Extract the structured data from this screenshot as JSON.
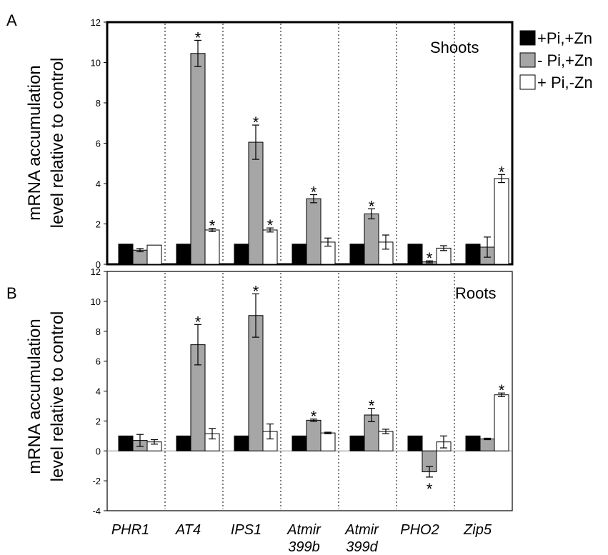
{
  "chart_data": [
    {
      "type": "bar",
      "panel": "A",
      "annotation": "Shoots",
      "ylabel": "mRNA accumulation level relative to control",
      "ylim": [
        0,
        12
      ],
      "yticks": [
        0,
        2,
        4,
        6,
        8,
        10,
        12
      ],
      "categories": [
        "PHR1",
        "AT4",
        "IPS1",
        "Atmir 399b",
        "Atmir 399d",
        "PHO2",
        "Zip5"
      ],
      "series": [
        {
          "name": "+Pi,+Zn",
          "color": "#000000",
          "values": [
            1,
            1,
            1,
            1,
            1,
            1,
            1
          ],
          "errors": [
            0,
            0,
            0,
            0,
            0,
            0,
            0
          ],
          "significant": [
            false,
            false,
            false,
            false,
            false,
            false,
            false
          ]
        },
        {
          "name": "- Pi,+Zn",
          "color": "#a6a6a6",
          "values": [
            0.7,
            10.45,
            6.05,
            3.25,
            2.5,
            0.12,
            0.85
          ],
          "errors": [
            0.08,
            0.65,
            0.85,
            0.2,
            0.25,
            0.05,
            0.5
          ],
          "significant": [
            false,
            true,
            true,
            true,
            true,
            true,
            false
          ]
        },
        {
          "name": "+ Pi,-Zn",
          "color": "#ffffff",
          "values": [
            0.95,
            1.7,
            1.7,
            1.1,
            1.1,
            0.8,
            4.25
          ],
          "errors": [
            0,
            0.08,
            0.1,
            0.2,
            0.35,
            0.12,
            0.2
          ],
          "significant": [
            false,
            true,
            true,
            false,
            false,
            false,
            true
          ]
        }
      ]
    },
    {
      "type": "bar",
      "panel": "B",
      "annotation": "Roots",
      "ylabel": "mRNA accumulation level relative to control",
      "ylim": [
        -4,
        12
      ],
      "yticks": [
        -4,
        -2,
        0,
        2,
        4,
        6,
        8,
        10,
        12
      ],
      "categories": [
        "PHR1",
        "AT4",
        "IPS1",
        "Atmir 399b",
        "Atmir 399d",
        "PHO2",
        "Zip5"
      ],
      "series": [
        {
          "name": "+Pi,+Zn",
          "color": "#000000",
          "values": [
            1,
            1,
            1,
            1,
            1,
            1,
            1
          ],
          "errors": [
            0,
            0,
            0,
            0,
            0,
            0,
            0
          ],
          "significant": [
            false,
            false,
            false,
            false,
            false,
            false,
            false
          ]
        },
        {
          "name": "- Pi,+Zn",
          "color": "#a6a6a6",
          "values": [
            0.7,
            7.1,
            9.05,
            2.05,
            2.4,
            -1.4,
            0.8
          ],
          "errors": [
            0.4,
            1.35,
            1.45,
            0.08,
            0.45,
            0.35,
            0.05
          ],
          "significant": [
            false,
            true,
            true,
            true,
            true,
            true,
            false
          ]
        },
        {
          "name": "+ Pi,-Zn",
          "color": "#ffffff",
          "values": [
            0.6,
            1.15,
            1.3,
            1.2,
            1.3,
            0.6,
            3.75
          ],
          "errors": [
            0.15,
            0.35,
            0.5,
            0.05,
            0.15,
            0.4,
            0.12
          ],
          "significant": [
            false,
            false,
            false,
            false,
            false,
            false,
            true
          ]
        }
      ]
    }
  ],
  "x_tick_labels": [
    {
      "lines": [
        "PHR1"
      ]
    },
    {
      "lines": [
        "AT4"
      ]
    },
    {
      "lines": [
        "IPS1"
      ]
    },
    {
      "lines": [
        "Atmir",
        "399b"
      ]
    },
    {
      "lines": [
        "Atmir",
        "399d"
      ]
    },
    {
      "lines": [
        "PHO2"
      ]
    },
    {
      "lines": [
        "Zip5"
      ]
    }
  ],
  "significance_marker": "*",
  "ylabel_lines": [
    "mRNA accumulation",
    "level relative to control"
  ],
  "legend": [
    {
      "label": "+Pi,+Zn",
      "color": "#000000"
    },
    {
      "label": "- Pi,+Zn",
      "color": "#a6a6a6"
    },
    {
      "label": "+ Pi,-Zn",
      "color": "#ffffff"
    }
  ]
}
